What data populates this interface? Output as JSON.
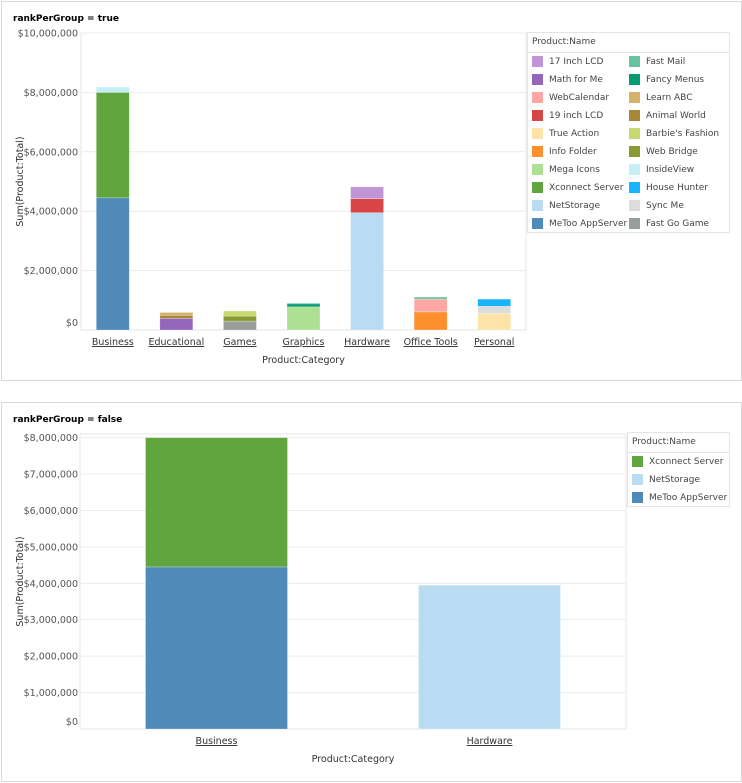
{
  "colors": {
    "17 Inch LCD": "#c095d8",
    "Math for Me": "#9467bd",
    "WebCalendar": "#fda7a4",
    "19 inch LCD": "#d84545",
    "True Action": "#fde3a7",
    "Info Folder": "#fd8f2c",
    "Mega Icons": "#aee093",
    "Xconnect Server": "#60a53e",
    "NetStorage": "#badcf3",
    "MeToo AppServer": "#4f8bba",
    "Fast Mail": "#68c4a0",
    "Fancy Menus": "#079b74",
    "Learn ABC": "#d3b26a",
    "Animal World": "#a88838",
    "Barbie's Fashion": "#c9d96f",
    "Web Bridge": "#889a30",
    "InsideView": "#c5eef5",
    "House Hunter": "#19b4fd",
    "Sync Me": "#dcdcdc",
    "Fast Go Game": "#979e9b"
  },
  "chart_data": [
    {
      "type": "bar",
      "stacked": true,
      "title": "rankPerGroup = true",
      "xlabel": "Product:Category",
      "ylabel": "Sum(Product:Total)",
      "ylim": [
        0,
        10000000
      ],
      "yticks": [
        "$0",
        "$2,000,000",
        "$4,000,000",
        "$6,000,000",
        "$8,000,000",
        "$10,000,000"
      ],
      "ytick_values": [
        0,
        2000000,
        4000000,
        6000000,
        8000000,
        10000000
      ],
      "grid": true,
      "legend_title": "Product:Name",
      "legend_position": "right",
      "legend": [
        "17 Inch LCD",
        "Fast Mail",
        "Math for Me",
        "Fancy Menus",
        "WebCalendar",
        "Learn ABC",
        "19 inch LCD",
        "Animal World",
        "True Action",
        "Barbie's Fashion",
        "Info Folder",
        "Web Bridge",
        "Mega Icons",
        "InsideView",
        "Xconnect Server",
        "House Hunter",
        "NetStorage",
        "Sync Me",
        "MeToo AppServer",
        "Fast Go Game"
      ],
      "categories": [
        {
          "name": "Business",
          "stack": [
            {
              "series": "MeToo AppServer",
              "value": 4450000
            },
            {
              "series": "Xconnect Server",
              "value": 3550000
            },
            {
              "series": "InsideView",
              "value": 180000
            }
          ]
        },
        {
          "name": "Educational",
          "stack": [
            {
              "series": "Math for Me",
              "value": 390000
            },
            {
              "series": "Animal World",
              "value": 100000
            },
            {
              "series": "Learn ABC",
              "value": 100000
            }
          ]
        },
        {
          "name": "Games",
          "stack": [
            {
              "series": "Fast Go Game",
              "value": 300000
            },
            {
              "series": "Web Bridge",
              "value": 170000
            },
            {
              "series": "Barbie's Fashion",
              "value": 170000
            }
          ]
        },
        {
          "name": "Graphics",
          "stack": [
            {
              "series": "Mega Icons",
              "value": 780000
            },
            {
              "series": "Fancy Menus",
              "value": 100000
            },
            {
              "series": "Fast Mail",
              "value": 30000
            }
          ]
        },
        {
          "name": "Hardware",
          "stack": [
            {
              "series": "NetStorage",
              "value": 3950000
            },
            {
              "series": "19 inch LCD",
              "value": 470000
            },
            {
              "series": "17 Inch LCD",
              "value": 400000
            }
          ]
        },
        {
          "name": "Office Tools",
          "stack": [
            {
              "series": "Info Folder",
              "value": 610000
            },
            {
              "series": "WebCalendar",
              "value": 430000
            },
            {
              "series": "Fast Mail",
              "value": 70000
            }
          ]
        },
        {
          "name": "Personal",
          "stack": [
            {
              "series": "True Action",
              "value": 560000
            },
            {
              "series": "Sync Me",
              "value": 240000
            },
            {
              "series": "House Hunter",
              "value": 240000
            }
          ]
        }
      ]
    },
    {
      "type": "bar",
      "stacked": true,
      "title": "rankPerGroup = false",
      "xlabel": "Product:Category",
      "ylabel": "Sum(Product:Total)",
      "ylim": [
        0,
        8100000
      ],
      "yticks": [
        "$0",
        "$1,000,000",
        "$2,000,000",
        "$3,000,000",
        "$4,000,000",
        "$5,000,000",
        "$6,000,000",
        "$7,000,000",
        "$8,000,000"
      ],
      "ytick_values": [
        0,
        1000000,
        2000000,
        3000000,
        4000000,
        5000000,
        6000000,
        7000000,
        8000000
      ],
      "grid": true,
      "legend_title": "Product:Name",
      "legend_position": "right",
      "legend": [
        "Xconnect Server",
        "NetStorage",
        "MeToo AppServer"
      ],
      "categories": [
        {
          "name": "Business",
          "stack": [
            {
              "series": "MeToo AppServer",
              "value": 4450000
            },
            {
              "series": "Xconnect Server",
              "value": 3550000
            }
          ]
        },
        {
          "name": "Hardware",
          "stack": [
            {
              "series": "NetStorage",
              "value": 3950000
            }
          ]
        }
      ]
    }
  ]
}
